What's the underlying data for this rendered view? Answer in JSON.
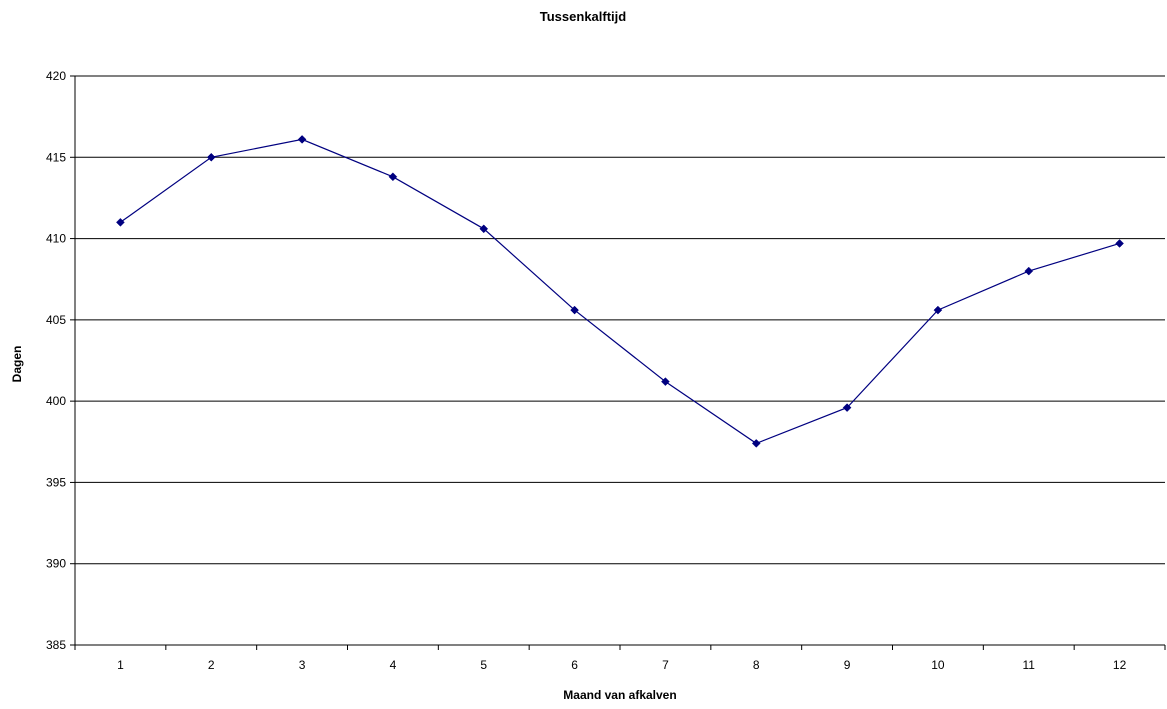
{
  "chart_data": {
    "type": "line",
    "title": "Tussenkalftijd",
    "xlabel": "Maand van afkalven",
    "ylabel": "Dagen",
    "categories": [
      "1",
      "2",
      "3",
      "4",
      "5",
      "6",
      "7",
      "8",
      "9",
      "10",
      "11",
      "12"
    ],
    "series": [
      {
        "values": [
          411.0,
          415.0,
          416.1,
          413.8,
          410.6,
          405.6,
          401.2,
          397.4,
          399.6,
          405.6,
          408.0,
          409.7
        ]
      }
    ],
    "ylim": [
      385,
      420
    ],
    "yticks": [
      "385",
      "390",
      "395",
      "400",
      "405",
      "410",
      "415",
      "420"
    ],
    "grid": "horizontal",
    "legend": "none",
    "colors": {
      "series": "#000080",
      "grid": "#000000",
      "axis": "#000000"
    }
  }
}
